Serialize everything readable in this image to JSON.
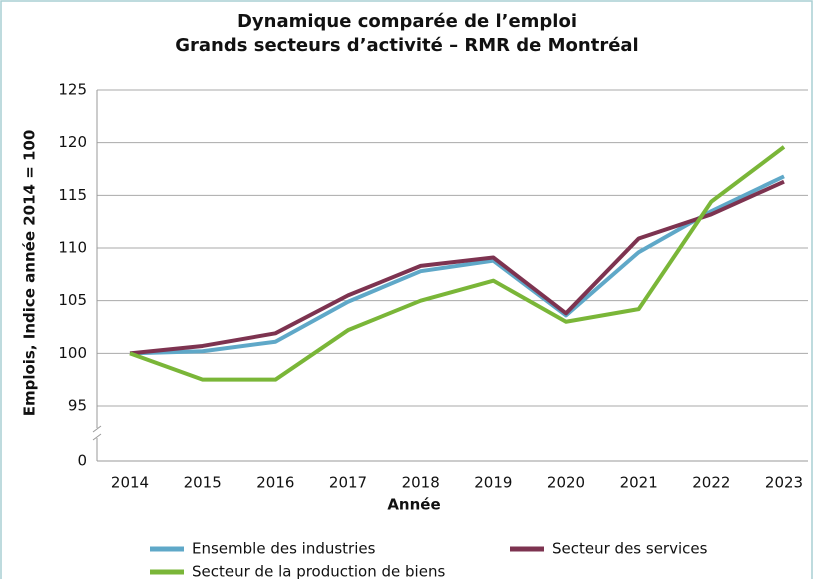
{
  "chart_data": {
    "type": "line",
    "title": [
      "Dynamique comparée de l’emploi",
      "Grands secteurs d’activité – RMR de Montréal"
    ],
    "x_label": "Année",
    "y_label": "Emplois, Indice année 2014 = 100",
    "categories": [
      "2014",
      "2015",
      "2016",
      "2017",
      "2018",
      "2019",
      "2020",
      "2021",
      "2022",
      "2023"
    ],
    "series": [
      {
        "name": "Ensemble des industries",
        "color": "#5fa8c8",
        "values": [
          100,
          100.2,
          101.1,
          104.9,
          107.8,
          108.8,
          103.6,
          109.6,
          113.5,
          116.8
        ]
      },
      {
        "name": "Secteur des services",
        "color": "#7d3350",
        "values": [
          100,
          100.7,
          101.9,
          105.5,
          108.3,
          109.1,
          103.8,
          110.9,
          113.2,
          116.3
        ]
      },
      {
        "name": "Secteur de la production de biens",
        "color": "#7ab638",
        "values": [
          100,
          97.5,
          97.5,
          102.2,
          105,
          106.9,
          103,
          104.2,
          114.4,
          119.6
        ]
      }
    ],
    "ylim": [
      0,
      125
    ],
    "yticks": [
      0,
      95,
      100,
      105,
      110,
      115,
      120,
      125
    ],
    "axis_break": true,
    "grid": true,
    "legend": "bottom"
  }
}
